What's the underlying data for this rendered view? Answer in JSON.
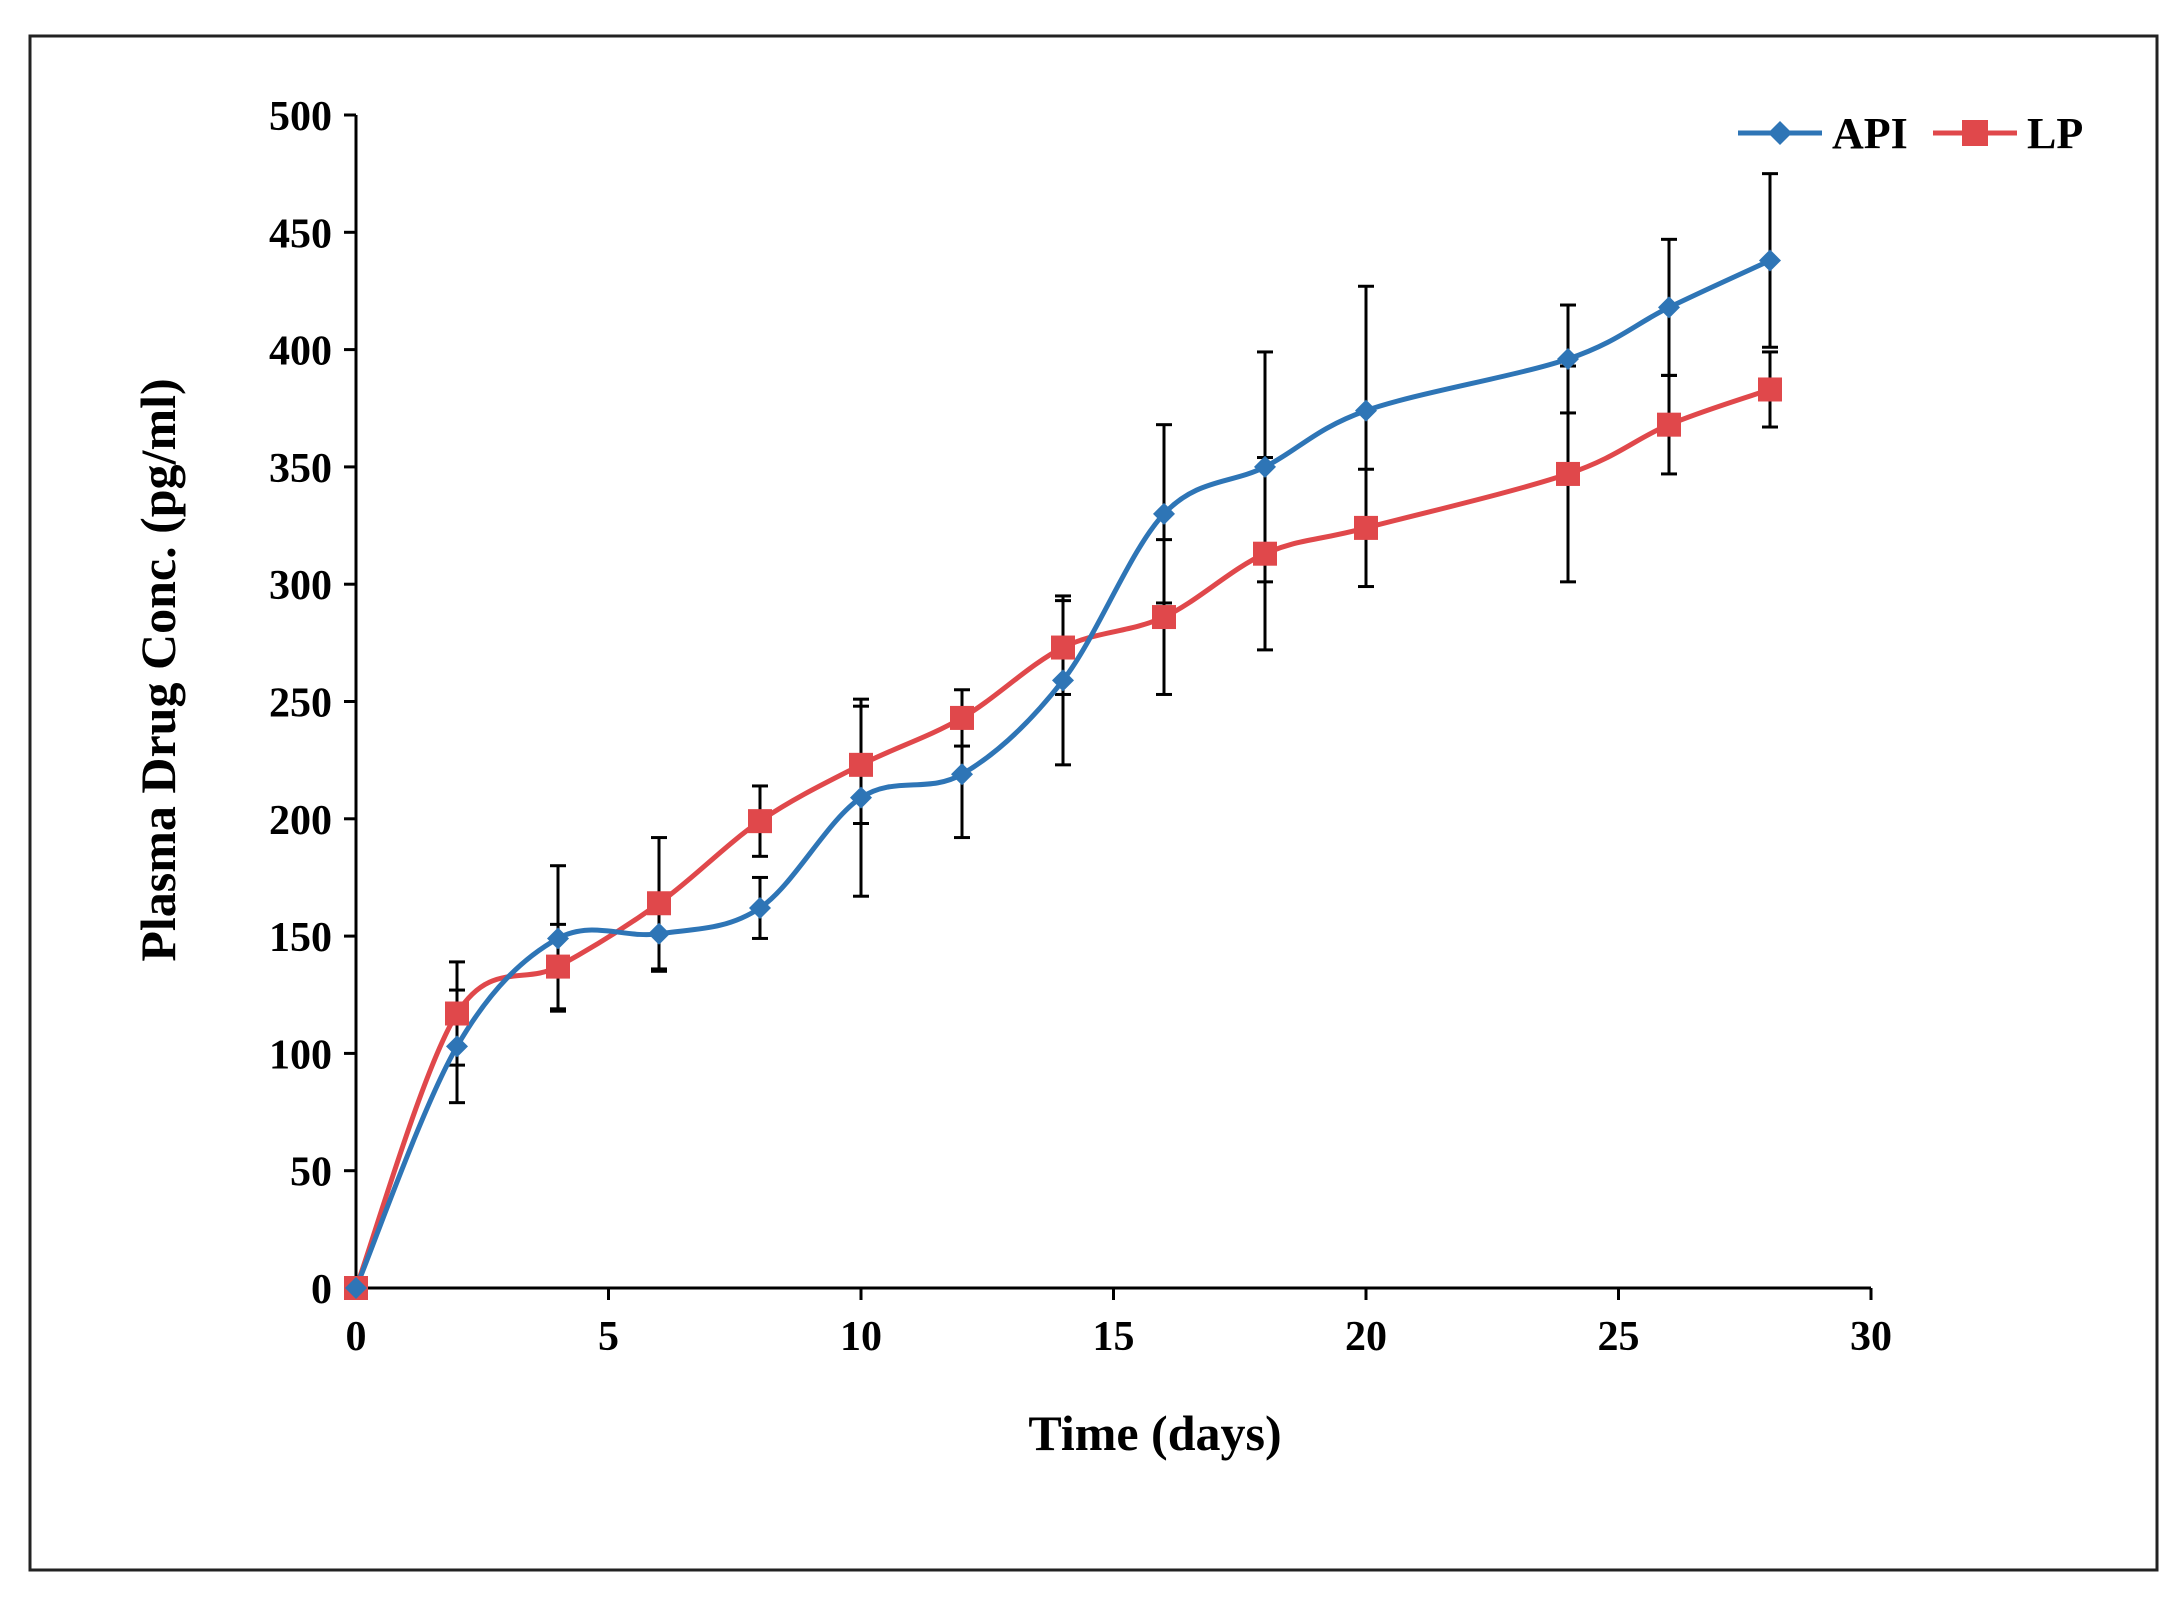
{
  "chart_data": {
    "type": "line",
    "title": "",
    "xlabel": "Time (days)",
    "ylabel": "Plasma Drug Conc. (pg/ml)",
    "xlim": [
      0,
      30
    ],
    "ylim": [
      0,
      500
    ],
    "xticks": [
      0,
      5,
      10,
      15,
      20,
      25,
      30
    ],
    "yticks": [
      0,
      50,
      100,
      150,
      200,
      250,
      300,
      350,
      400,
      450,
      500
    ],
    "grid": false,
    "legend_position": "top-right",
    "x": [
      0,
      2,
      4,
      6,
      8,
      10,
      12,
      14,
      16,
      18,
      20,
      24,
      26,
      28
    ],
    "series": [
      {
        "name": "API",
        "color": "#2E75B6",
        "marker": "diamond",
        "values": [
          0,
          103,
          149,
          151,
          162,
          209,
          219,
          259,
          330,
          350,
          374,
          396,
          418,
          438
        ],
        "errors": [
          0,
          24,
          31,
          16,
          13,
          42,
          27,
          36,
          38,
          49,
          53,
          23,
          29,
          37
        ]
      },
      {
        "name": "LP",
        "color": "#E0484B",
        "marker": "square",
        "values": [
          0,
          117,
          137,
          164,
          199,
          223,
          243,
          273,
          286,
          313,
          324,
          347,
          368,
          383
        ],
        "errors": [
          0,
          22,
          18,
          28,
          15,
          25,
          12,
          20,
          33,
          41,
          25,
          46,
          21,
          16
        ]
      }
    ]
  }
}
